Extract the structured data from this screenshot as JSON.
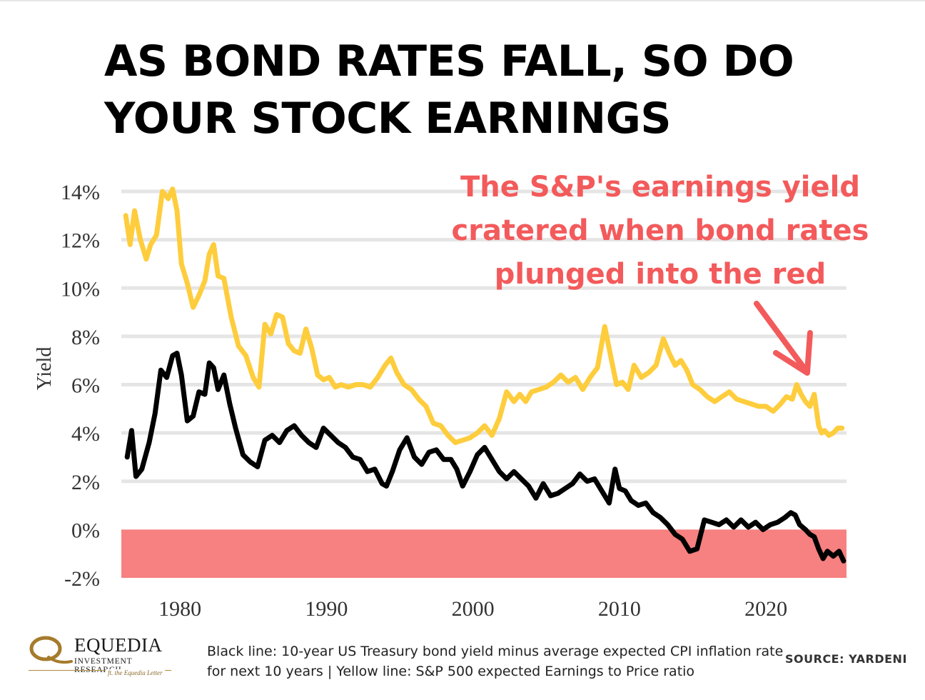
{
  "title": {
    "line1": "AS BOND RATES FALL, SO DO",
    "line2": "YOUR STOCK EARNINGS"
  },
  "callout": {
    "line1": "The S&P's earnings yield",
    "line2": "cratered when bond rates",
    "line3": "plunged into the red"
  },
  "footer": {
    "logo_name": "EQUEDIA",
    "logo_sub": "INVESTMENT RESEARCH",
    "logo_tag": "ft. the Equedia Letter",
    "note_line1": "Black line: 10-year US Treasury bond yield minus average expected CPI inflation rate",
    "note_line2": "for next 10 years | Yellow line: S&P 500 expected Earnings to Price ratio",
    "source": "SOURCE:  YARDENI"
  },
  "colors": {
    "earnings_yield": "#fecd3d",
    "real_bond_yield": "#000000",
    "negative_zone": "#f78080",
    "callout": "#f35a5b",
    "grid": "#e5e5e5"
  },
  "chart_data": {
    "type": "line",
    "title": "",
    "xlabel": "",
    "ylabel": "Yield",
    "xlim": [
      1976,
      2025.5
    ],
    "ylim": [
      -2,
      14
    ],
    "x_ticks": [
      {
        "value": 1980,
        "label": "1980"
      },
      {
        "value": 1990,
        "label": "1990"
      },
      {
        "value": 2000,
        "label": "2000"
      },
      {
        "value": 2010,
        "label": "2010"
      },
      {
        "value": 2020,
        "label": "2020"
      }
    ],
    "y_ticks": [
      {
        "value": 14,
        "label": "14%"
      },
      {
        "value": 12,
        "label": "12%"
      },
      {
        "value": 10,
        "label": "10%"
      },
      {
        "value": 8,
        "label": "8%"
      },
      {
        "value": 6,
        "label": "6%"
      },
      {
        "value": 4,
        "label": "4%"
      },
      {
        "value": 2,
        "label": "2%"
      },
      {
        "value": 0,
        "label": "0%"
      },
      {
        "value": -2,
        "label": "-2%"
      }
    ],
    "grid": true,
    "shaded_region": {
      "y_from": -2,
      "y_to": 0
    },
    "series": [
      {
        "key": "earnings_yield",
        "x": [
          1976.3,
          1976.6,
          1976.9,
          1977.3,
          1977.7,
          1978.0,
          1978.4,
          1978.8,
          1979.2,
          1979.5,
          1979.8,
          1980.1,
          1980.5,
          1980.9,
          1981.3,
          1981.7,
          1982.0,
          1982.3,
          1982.6,
          1983.0,
          1983.5,
          1984.0,
          1984.5,
          1985.0,
          1985.4,
          1985.8,
          1986.2,
          1986.6,
          1987.0,
          1987.4,
          1987.8,
          1988.2,
          1988.6,
          1989.0,
          1989.4,
          1989.8,
          1990.2,
          1990.6,
          1991.0,
          1991.5,
          1992.0,
          1992.5,
          1993.0,
          1993.5,
          1994.0,
          1994.4,
          1994.8,
          1995.3,
          1995.8,
          1996.3,
          1996.8,
          1997.3,
          1997.8,
          1998.3,
          1998.8,
          1999.3,
          1999.8,
          2000.3,
          2000.8,
          2001.3,
          2001.8,
          2002.3,
          2002.8,
          2003.2,
          2003.6,
          2004.0,
          2004.5,
          2005.0,
          2005.5,
          2006.0,
          2006.5,
          2007.0,
          2007.5,
          2008.0,
          2008.5,
          2009.0,
          2009.4,
          2009.8,
          2010.2,
          2010.6,
          2011.0,
          2011.5,
          2012.0,
          2012.5,
          2013.0,
          2013.4,
          2013.8,
          2014.2,
          2014.6,
          2015.0,
          2015.5,
          2016.0,
          2016.5,
          2017.0,
          2017.5,
          2018.0,
          2018.5,
          2019.0,
          2019.5,
          2020.0,
          2020.5,
          2021.0,
          2021.4,
          2021.8,
          2022.1,
          2022.4,
          2022.7,
          2023.0,
          2023.3,
          2023.6,
          2023.8,
          2024.0,
          2024.3,
          2024.6,
          2024.9,
          2025.2
        ],
        "y": [
          13.0,
          11.8,
          13.2,
          12.0,
          11.2,
          11.8,
          12.2,
          14.0,
          13.7,
          14.1,
          13.2,
          11.0,
          10.2,
          9.2,
          9.7,
          10.3,
          11.4,
          11.8,
          10.5,
          10.4,
          8.8,
          7.6,
          7.2,
          6.3,
          5.9,
          8.5,
          8.1,
          8.9,
          8.8,
          7.7,
          7.4,
          7.3,
          8.3,
          7.5,
          6.4,
          6.2,
          6.3,
          5.9,
          6.0,
          5.9,
          6.0,
          6.0,
          5.9,
          6.3,
          6.8,
          7.1,
          6.5,
          6.0,
          5.8,
          5.4,
          5.1,
          4.4,
          4.3,
          3.9,
          3.6,
          3.7,
          3.8,
          4.0,
          4.3,
          3.9,
          4.6,
          5.7,
          5.3,
          5.6,
          5.3,
          5.7,
          5.8,
          5.9,
          6.1,
          6.4,
          6.1,
          6.3,
          5.8,
          6.3,
          6.7,
          8.4,
          7.2,
          6.0,
          6.1,
          5.8,
          6.8,
          6.3,
          6.5,
          6.8,
          7.9,
          7.3,
          6.8,
          7.0,
          6.6,
          6.0,
          5.8,
          5.5,
          5.3,
          5.5,
          5.7,
          5.4,
          5.3,
          5.2,
          5.1,
          5.1,
          4.9,
          5.2,
          5.5,
          5.4,
          6.0,
          5.6,
          5.3,
          5.1,
          5.6,
          4.3,
          4.0,
          4.1,
          3.9,
          4.0,
          4.2,
          4.2
        ]
      },
      {
        "key": "real_bond_yield",
        "x": [
          1976.4,
          1976.7,
          1977.0,
          1977.4,
          1977.9,
          1978.3,
          1978.7,
          1979.1,
          1979.5,
          1979.8,
          1980.1,
          1980.5,
          1980.9,
          1981.3,
          1981.7,
          1982.0,
          1982.3,
          1982.6,
          1983.0,
          1983.4,
          1983.8,
          1984.3,
          1984.8,
          1985.3,
          1985.8,
          1986.3,
          1986.8,
          1987.3,
          1987.8,
          1988.3,
          1988.8,
          1989.3,
          1989.8,
          1990.3,
          1990.8,
          1991.3,
          1991.8,
          1992.3,
          1992.8,
          1993.3,
          1993.8,
          1994.1,
          1994.5,
          1995.0,
          1995.5,
          1996.0,
          1996.5,
          1997.0,
          1997.5,
          1998.0,
          1998.5,
          1998.9,
          1999.3,
          1999.8,
          2000.3,
          2000.8,
          2001.3,
          2001.8,
          2002.3,
          2002.8,
          2003.3,
          2003.8,
          2004.3,
          2004.8,
          2005.3,
          2005.8,
          2006.3,
          2006.8,
          2007.3,
          2007.8,
          2008.3,
          2008.8,
          2009.3,
          2009.7,
          2010.0,
          2010.4,
          2010.8,
          2011.3,
          2011.8,
          2012.3,
          2012.8,
          2013.3,
          2013.8,
          2014.3,
          2014.8,
          2015.3,
          2015.8,
          2016.3,
          2016.8,
          2017.3,
          2017.8,
          2018.3,
          2018.8,
          2019.3,
          2019.8,
          2020.3,
          2020.8,
          2021.3,
          2021.7,
          2022.0,
          2022.3,
          2022.7,
          2023.0,
          2023.3,
          2023.6,
          2023.9,
          2024.2,
          2024.6,
          2025.0,
          2025.3
        ],
        "y": [
          3.0,
          4.1,
          2.2,
          2.5,
          3.6,
          4.8,
          6.6,
          6.3,
          7.2,
          7.3,
          6.4,
          4.5,
          4.7,
          5.7,
          5.6,
          6.9,
          6.7,
          5.8,
          6.4,
          5.2,
          4.2,
          3.1,
          2.8,
          2.6,
          3.7,
          3.9,
          3.6,
          4.1,
          4.3,
          3.9,
          3.6,
          3.4,
          4.2,
          3.9,
          3.6,
          3.4,
          3.0,
          2.9,
          2.4,
          2.5,
          1.9,
          1.8,
          2.4,
          3.3,
          3.8,
          3.0,
          2.7,
          3.2,
          3.3,
          2.9,
          2.9,
          2.5,
          1.8,
          2.4,
          3.1,
          3.4,
          2.9,
          2.4,
          2.1,
          2.4,
          2.1,
          1.8,
          1.3,
          1.9,
          1.4,
          1.5,
          1.7,
          1.9,
          2.3,
          2.0,
          2.1,
          1.6,
          1.1,
          2.5,
          1.7,
          1.6,
          1.2,
          1.0,
          1.1,
          0.7,
          0.5,
          0.2,
          -0.2,
          -0.4,
          -0.9,
          -0.8,
          0.4,
          0.3,
          0.2,
          0.4,
          0.1,
          0.4,
          0.1,
          0.3,
          0.0,
          0.2,
          0.3,
          0.5,
          0.7,
          0.6,
          0.2,
          0.0,
          -0.2,
          -0.3,
          -0.8,
          -1.2,
          -0.9,
          -1.1,
          -0.9,
          -1.3
        ]
      }
    ]
  }
}
